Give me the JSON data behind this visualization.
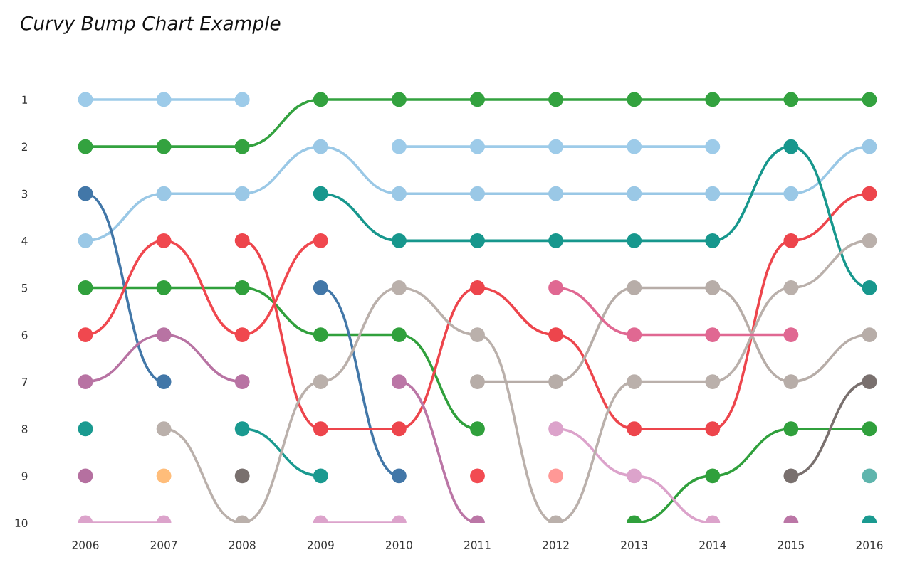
{
  "chart_data": {
    "type": "line",
    "title": "Curvy Bump Chart Example",
    "categories": [
      "2006",
      "2007",
      "2008",
      "2009",
      "2010",
      "2011",
      "2012",
      "2013",
      "2014",
      "2015",
      "2016"
    ],
    "ylim": [
      10,
      1
    ],
    "yticks": [
      1,
      2,
      3,
      4,
      5,
      6,
      7,
      8,
      9,
      10
    ],
    "grid": false,
    "legend": false,
    "marker": "circle",
    "line_style": "solid",
    "series": [
      {
        "color": "#9dcbe9",
        "values": [
          1,
          1,
          1,
          null,
          2,
          2,
          2,
          2,
          2,
          null,
          null
        ]
      },
      {
        "color": "#9ac8e6",
        "values": [
          4,
          3,
          3,
          2,
          3,
          3,
          3,
          3,
          3,
          3,
          2
        ]
      },
      {
        "color": "#33a23f",
        "values": [
          2,
          2,
          2,
          1,
          1,
          1,
          1,
          1,
          1,
          1,
          1
        ]
      },
      {
        "color": "#30a03c",
        "values": [
          5,
          5,
          5,
          6,
          6,
          8,
          null,
          10,
          9,
          8,
          8
        ]
      },
      {
        "color": "#4277a8",
        "values": [
          3,
          7,
          null,
          5,
          9,
          null,
          null,
          null,
          null,
          null,
          null
        ]
      },
      {
        "color": "#f0484f",
        "values": [
          6,
          4,
          6,
          4,
          null,
          null,
          null,
          null,
          null,
          null,
          null
        ]
      },
      {
        "color": "#ed454c",
        "values": [
          null,
          null,
          4,
          8,
          8,
          5,
          6,
          8,
          8,
          4,
          3
        ]
      },
      {
        "color": "#f24b52",
        "values": [
          null,
          null,
          null,
          null,
          null,
          9,
          null,
          null,
          null,
          null,
          null
        ]
      },
      {
        "color": "#1a9a90",
        "values": [
          8,
          null,
          8,
          9,
          null,
          null,
          null,
          null,
          null,
          null,
          10
        ]
      },
      {
        "color": "#17978d",
        "values": [
          null,
          null,
          null,
          3,
          4,
          4,
          4,
          4,
          4,
          2,
          5
        ]
      },
      {
        "color": "#5fb5ad",
        "values": [
          null,
          null,
          null,
          null,
          null,
          null,
          null,
          null,
          null,
          null,
          9
        ]
      },
      {
        "color": "#b873a3",
        "values": [
          7,
          6,
          7,
          null,
          null,
          null,
          null,
          null,
          null,
          null,
          null
        ]
      },
      {
        "color": "#b570a0",
        "values": [
          9,
          null,
          null,
          null,
          null,
          null,
          null,
          null,
          null,
          null,
          null
        ]
      },
      {
        "color": "#bb76a6",
        "values": [
          null,
          null,
          null,
          null,
          7,
          10,
          null,
          null,
          null,
          10,
          null
        ]
      },
      {
        "color": "#dca3cb",
        "values": [
          10,
          10,
          null,
          10,
          10,
          null,
          8,
          9,
          10,
          null,
          null
        ]
      },
      {
        "color": "#bab0ab",
        "values": [
          null,
          8,
          10,
          7,
          5,
          6,
          10,
          7,
          7,
          5,
          4
        ]
      },
      {
        "color": "#b7ada8",
        "values": [
          null,
          null,
          null,
          null,
          null,
          7,
          7,
          5,
          5,
          7,
          6
        ]
      },
      {
        "color": "#79706e",
        "values": [
          null,
          null,
          9,
          null,
          null,
          null,
          null,
          null,
          null,
          9,
          7
        ]
      },
      {
        "color": "#ffbd7a",
        "values": [
          null,
          9,
          null,
          null,
          null,
          null,
          null,
          null,
          null,
          null,
          null
        ]
      },
      {
        "color": "#ff9896",
        "values": [
          null,
          null,
          null,
          null,
          null,
          null,
          9,
          null,
          null,
          null,
          null
        ]
      },
      {
        "color": "#e06892",
        "values": [
          null,
          null,
          null,
          null,
          null,
          null,
          5,
          6,
          6,
          6,
          null
        ]
      }
    ]
  }
}
